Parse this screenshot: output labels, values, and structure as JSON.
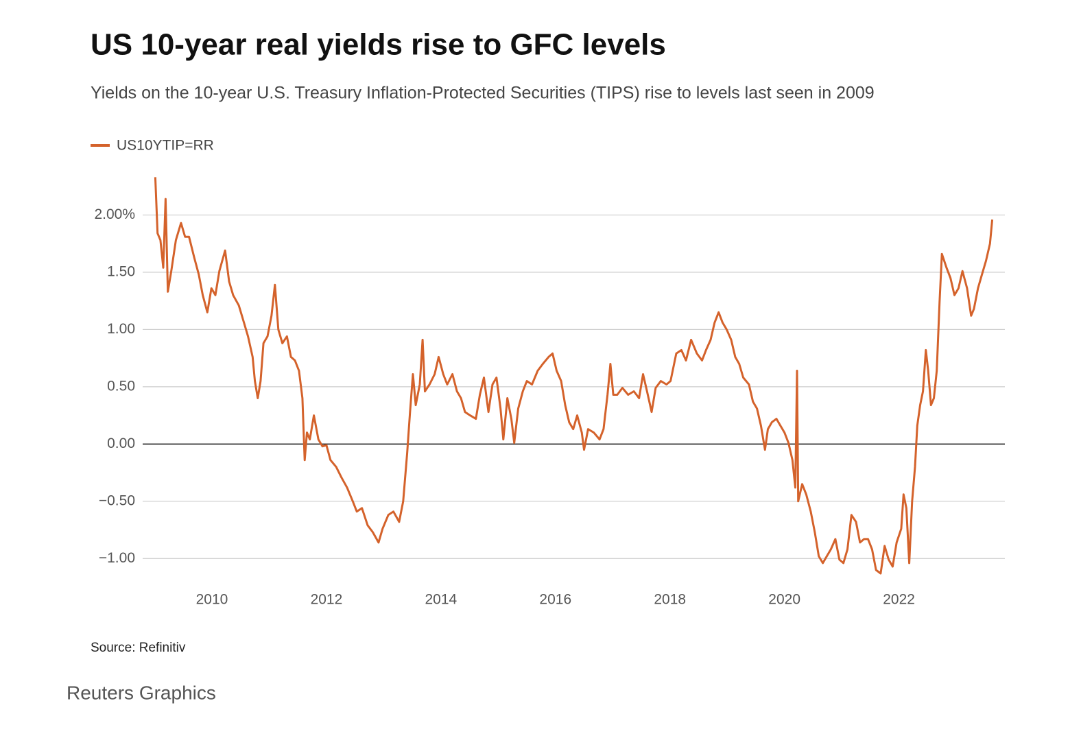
{
  "chart_data": {
    "type": "line",
    "title": "US 10-year real yields rise to GFC levels",
    "subtitle": "Yields on the 10-year U.S. Treasury Inflation-Protected Securities (TIPS) rise to levels last seen in 2009",
    "source": "Source: Refinitiv",
    "credit": "Reuters Graphics",
    "x": [
      2009.01,
      2009.05,
      2009.1,
      2009.15,
      2009.19,
      2009.23,
      2009.29,
      2009.37,
      2009.46,
      2009.53,
      2009.6,
      2009.69,
      2009.77,
      2009.84,
      2009.92,
      2009.99,
      2010.06,
      2010.13,
      2010.23,
      2010.3,
      2010.37,
      2010.47,
      2010.56,
      2010.63,
      2010.71,
      2010.75,
      2010.8,
      2010.85,
      2010.9,
      2010.97,
      2011.04,
      2011.1,
      2011.16,
      2011.23,
      2011.31,
      2011.38,
      2011.45,
      2011.52,
      2011.58,
      2011.62,
      2011.66,
      2011.71,
      2011.78,
      2011.86,
      2011.93,
      2012.0,
      2012.07,
      2012.17,
      2012.26,
      2012.36,
      2012.46,
      2012.53,
      2012.62,
      2012.72,
      2012.81,
      2012.91,
      2012.98,
      2013.08,
      2013.17,
      2013.27,
      2013.34,
      2013.41,
      2013.46,
      2013.51,
      2013.56,
      2013.63,
      2013.68,
      2013.72,
      2013.8,
      2013.89,
      2013.96,
      2014.04,
      2014.11,
      2014.2,
      2014.28,
      2014.35,
      2014.42,
      2014.51,
      2014.61,
      2014.68,
      2014.75,
      2014.83,
      2014.9,
      2014.97,
      2015.04,
      2015.09,
      2015.16,
      2015.23,
      2015.28,
      2015.35,
      2015.43,
      2015.5,
      2015.59,
      2015.69,
      2015.78,
      2015.88,
      2015.95,
      2016.02,
      2016.1,
      2016.17,
      2016.24,
      2016.31,
      2016.38,
      2016.46,
      2016.5,
      2016.57,
      2016.67,
      2016.77,
      2016.84,
      2016.91,
      2016.96,
      2017.01,
      2017.08,
      2017.17,
      2017.27,
      2017.37,
      2017.46,
      2017.53,
      2017.6,
      2017.68,
      2017.75,
      2017.84,
      2017.94,
      2018.01,
      2018.11,
      2018.2,
      2018.28,
      2018.37,
      2018.47,
      2018.56,
      2018.63,
      2018.71,
      2018.78,
      2018.85,
      2018.92,
      2018.99,
      2019.07,
      2019.14,
      2019.21,
      2019.28,
      2019.38,
      2019.45,
      2019.52,
      2019.59,
      2019.66,
      2019.71,
      2019.78,
      2019.86,
      2019.93,
      2020.0,
      2020.07,
      2020.14,
      2020.19,
      2020.22,
      2020.24,
      2020.31,
      2020.38,
      2020.46,
      2020.53,
      2020.6,
      2020.67,
      2020.74,
      2020.81,
      2020.89,
      2020.96,
      2021.03,
      2021.1,
      2021.17,
      2021.25,
      2021.32,
      2021.39,
      2021.46,
      2021.53,
      2021.6,
      2021.68,
      2021.75,
      2021.82,
      2021.89,
      2021.96,
      2022.04,
      2022.08,
      2022.13,
      2022.18,
      2022.23,
      2022.28,
      2022.32,
      2022.37,
      2022.42,
      2022.47,
      2022.51,
      2022.56,
      2022.61,
      2022.66,
      2022.71,
      2022.75,
      2022.83,
      2022.9,
      2022.97,
      2023.04,
      2023.11,
      2023.19,
      2023.26,
      2023.31,
      2023.38,
      2023.45,
      2023.52,
      2023.59,
      2023.63
    ],
    "series": [
      {
        "name": "US10YTIP=RR",
        "color": "#d4622b",
        "values": [
          2.33,
          1.84,
          1.78,
          1.54,
          2.14,
          1.33,
          1.51,
          1.78,
          1.93,
          1.81,
          1.81,
          1.63,
          1.48,
          1.3,
          1.15,
          1.36,
          1.3,
          1.51,
          1.69,
          1.42,
          1.3,
          1.21,
          1.06,
          0.94,
          0.76,
          0.55,
          0.4,
          0.55,
          0.88,
          0.94,
          1.12,
          1.39,
          1.0,
          0.88,
          0.94,
          0.76,
          0.73,
          0.64,
          0.4,
          -0.14,
          0.1,
          0.04,
          0.25,
          0.04,
          -0.02,
          -0.01,
          -0.14,
          -0.2,
          -0.29,
          -0.38,
          -0.5,
          -0.59,
          -0.56,
          -0.71,
          -0.77,
          -0.86,
          -0.74,
          -0.62,
          -0.59,
          -0.68,
          -0.5,
          -0.08,
          0.28,
          0.61,
          0.34,
          0.52,
          0.91,
          0.46,
          0.52,
          0.61,
          0.76,
          0.61,
          0.52,
          0.61,
          0.46,
          0.4,
          0.28,
          0.25,
          0.22,
          0.43,
          0.58,
          0.28,
          0.52,
          0.58,
          0.31,
          0.04,
          0.4,
          0.22,
          0.01,
          0.31,
          0.46,
          0.55,
          0.52,
          0.64,
          0.7,
          0.76,
          0.79,
          0.64,
          0.55,
          0.34,
          0.19,
          0.13,
          0.25,
          0.1,
          -0.05,
          0.13,
          0.1,
          0.04,
          0.13,
          0.43,
          0.7,
          0.43,
          0.43,
          0.49,
          0.43,
          0.46,
          0.4,
          0.61,
          0.46,
          0.28,
          0.49,
          0.55,
          0.52,
          0.55,
          0.79,
          0.82,
          0.73,
          0.91,
          0.79,
          0.73,
          0.82,
          0.91,
          1.06,
          1.15,
          1.06,
          1.0,
          0.91,
          0.76,
          0.7,
          0.58,
          0.52,
          0.37,
          0.31,
          0.16,
          -0.05,
          0.13,
          0.19,
          0.22,
          0.16,
          0.1,
          0.01,
          -0.14,
          -0.38,
          0.64,
          -0.5,
          -0.35,
          -0.44,
          -0.59,
          -0.77,
          -0.98,
          -1.04,
          -0.98,
          -0.92,
          -0.83,
          -1.01,
          -1.04,
          -0.92,
          -0.62,
          -0.68,
          -0.86,
          -0.83,
          -0.83,
          -0.92,
          -1.1,
          -1.13,
          -0.89,
          -1.01,
          -1.07,
          -0.86,
          -0.74,
          -0.44,
          -0.56,
          -1.04,
          -0.5,
          -0.2,
          0.16,
          0.34,
          0.46,
          0.82,
          0.64,
          0.34,
          0.4,
          0.64,
          1.24,
          1.66,
          1.54,
          1.45,
          1.3,
          1.36,
          1.51,
          1.36,
          1.12,
          1.18,
          1.36,
          1.48,
          1.6,
          1.75,
          1.96
        ]
      }
    ],
    "xlim": [
      2008.79,
      2023.85
    ],
    "xticks": [
      2010,
      2012,
      2014,
      2016,
      2018,
      2020,
      2022
    ],
    "ylim": [
      -1.25,
      2.35
    ],
    "yticks": [
      {
        "value": -1,
        "label": "−1.00"
      },
      {
        "value": -0.5,
        "label": "−0.50"
      },
      {
        "value": 0,
        "label": "0.00"
      },
      {
        "value": 0.5,
        "label": "0.50"
      },
      {
        "value": 1,
        "label": "1.00"
      },
      {
        "value": 1.5,
        "label": "1.50"
      },
      {
        "value": 2,
        "label": "2.00%"
      }
    ],
    "grid": true
  }
}
